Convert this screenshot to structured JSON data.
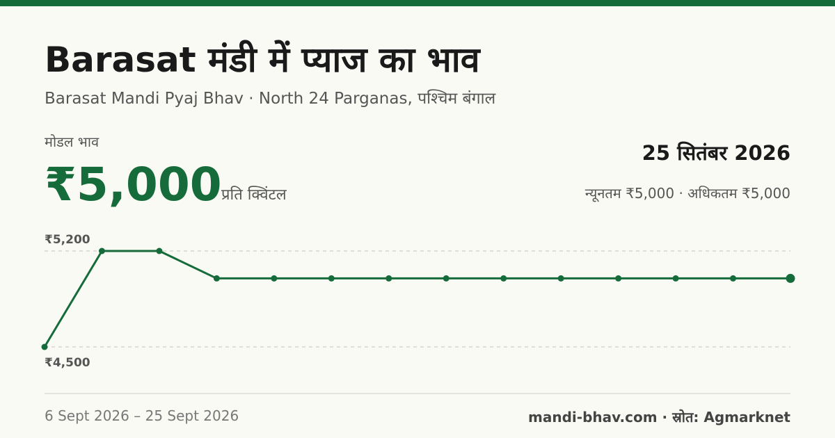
{
  "header": {
    "title": "Barasat मंडी में प्याज का भाव",
    "subtitle": "Barasat Mandi Pyaj Bhav · North 24 Parganas, पश्चिम बंगाल"
  },
  "price": {
    "modal_label": "मोडल भाव",
    "modal_value": "₹5,000",
    "unit": "प्रति क्विंटल",
    "date": "25 सितंबर 2026",
    "minmax": "न्यूनतम ₹5,000 · अधिकतम ₹5,000"
  },
  "footer": {
    "range": "6 Sept 2026 – 25 Sept 2026",
    "source": "mandi-bhav.com · स्रोत: Agmarknet"
  },
  "colors": {
    "accent": "#156b3a",
    "grid": "#cfcfc5"
  },
  "chart_data": {
    "type": "line",
    "title": "",
    "xlabel": "",
    "ylabel": "",
    "ylim": [
      4500,
      5200
    ],
    "ytick_values": [
      4500,
      5200
    ],
    "ytick_labels": [
      "₹4,500",
      "₹5,200"
    ],
    "grid": true,
    "series": [
      {
        "values": [
          4500,
          5200,
          5200,
          5000,
          5000,
          5000,
          5000,
          5000,
          5000,
          5000,
          5000,
          5000,
          5000,
          5000
        ]
      }
    ]
  }
}
